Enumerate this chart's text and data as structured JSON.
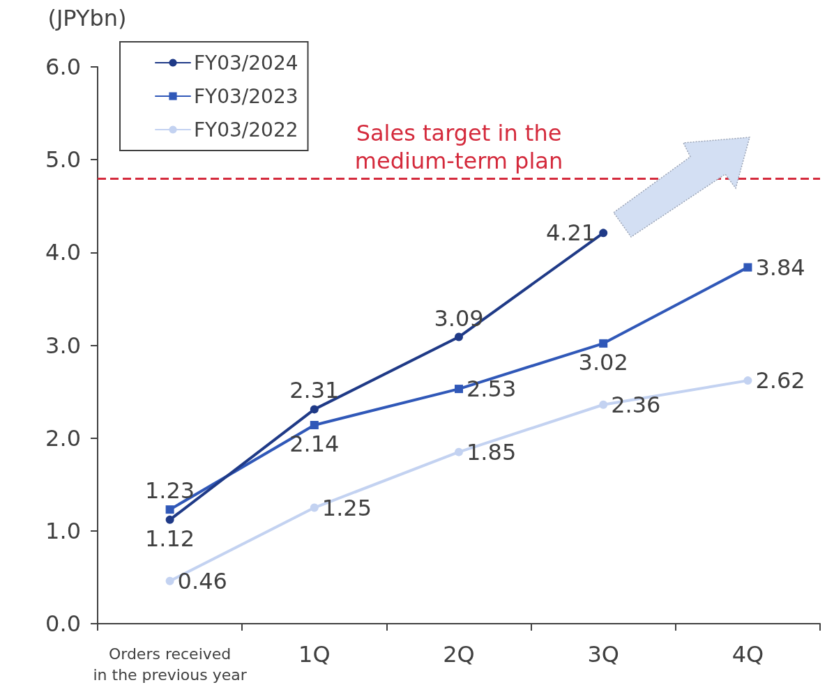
{
  "chart_data": {
    "type": "line",
    "ylabel": "(JPYbn)",
    "categories": [
      "Orders received\nin the previous year",
      "1Q",
      "2Q",
      "3Q",
      "4Q"
    ],
    "series": [
      {
        "name": "FY03/2024",
        "color": "#1f3a87",
        "marker": "circle",
        "values": [
          1.12,
          2.31,
          3.09,
          4.21,
          null
        ]
      },
      {
        "name": "FY03/2023",
        "color": "#3058b8",
        "marker": "square",
        "values": [
          1.23,
          2.14,
          2.53,
          3.02,
          3.84
        ]
      },
      {
        "name": "FY03/2022",
        "color": "#c3d2f1",
        "marker": "circle",
        "values": [
          0.46,
          1.25,
          1.85,
          2.36,
          2.62
        ]
      }
    ],
    "ylim": [
      0,
      6
    ],
    "yticks": [
      {
        "value": 0,
        "label": "0.0"
      },
      {
        "value": 1,
        "label": "1.0"
      },
      {
        "value": 2,
        "label": "2.0"
      },
      {
        "value": 3,
        "label": "3.0"
      },
      {
        "value": 4,
        "label": "4.0"
      },
      {
        "value": 5,
        "label": "5.0"
      },
      {
        "value": 6,
        "label": "6.0"
      }
    ],
    "ref_lines": [
      {
        "axis": "y",
        "value": 4.8,
        "label": "Sales target in the\nmedium-term plan",
        "color": "#d42a3c",
        "line_style": "dashed"
      }
    ],
    "data_labels": true,
    "grid": false,
    "legend": "top left",
    "line_style": "solid"
  }
}
